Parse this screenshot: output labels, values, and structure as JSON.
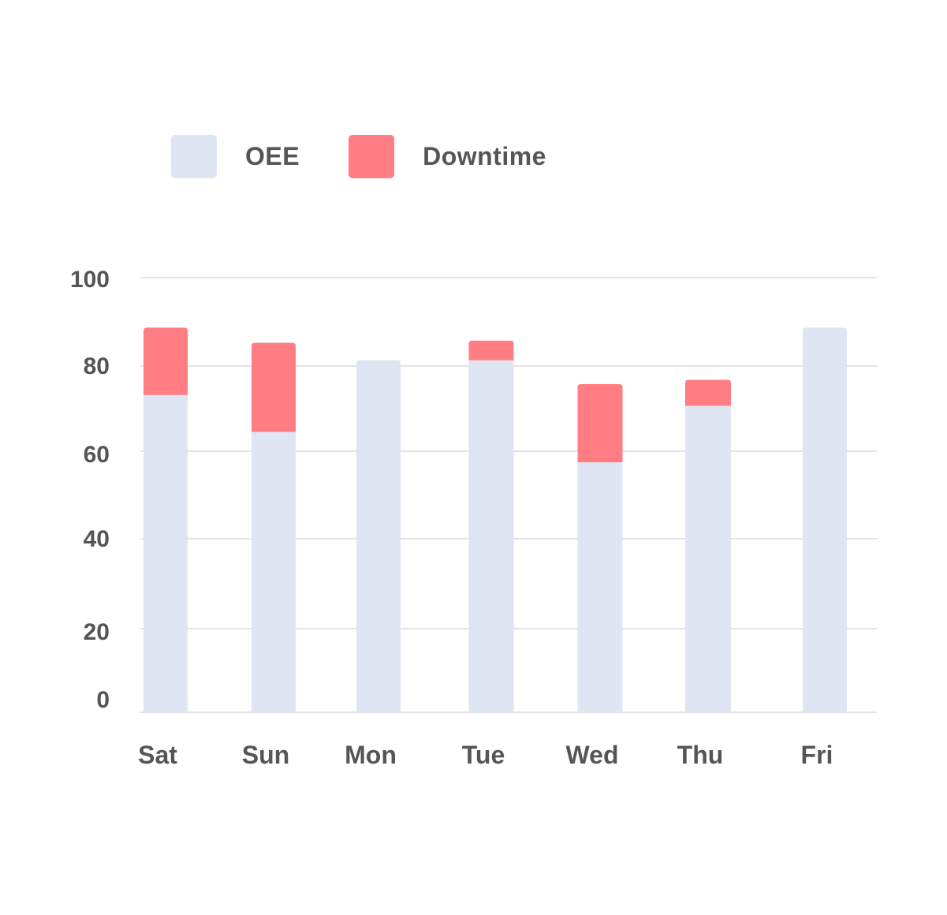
{
  "chart_data": {
    "type": "bar",
    "stacked": true,
    "categories": [
      "Sat",
      "Sun",
      "Mon",
      "Tue",
      "Wed",
      "Thu",
      "Fri"
    ],
    "series": [
      {
        "name": "OEE",
        "color": "#e0e5f3",
        "values": [
          73,
          64.5,
          81,
          81,
          57.5,
          70.5,
          88.5
        ]
      },
      {
        "name": "Downtime",
        "color": "#ff7d83",
        "values": [
          15.5,
          20.5,
          0,
          4.5,
          18,
          6,
          0
        ]
      }
    ],
    "y_ticks": [
      "0",
      "20",
      "40",
      "60",
      "80",
      "100"
    ],
    "ylim": [
      0,
      100
    ],
    "grid": true,
    "legend": "top-left"
  }
}
